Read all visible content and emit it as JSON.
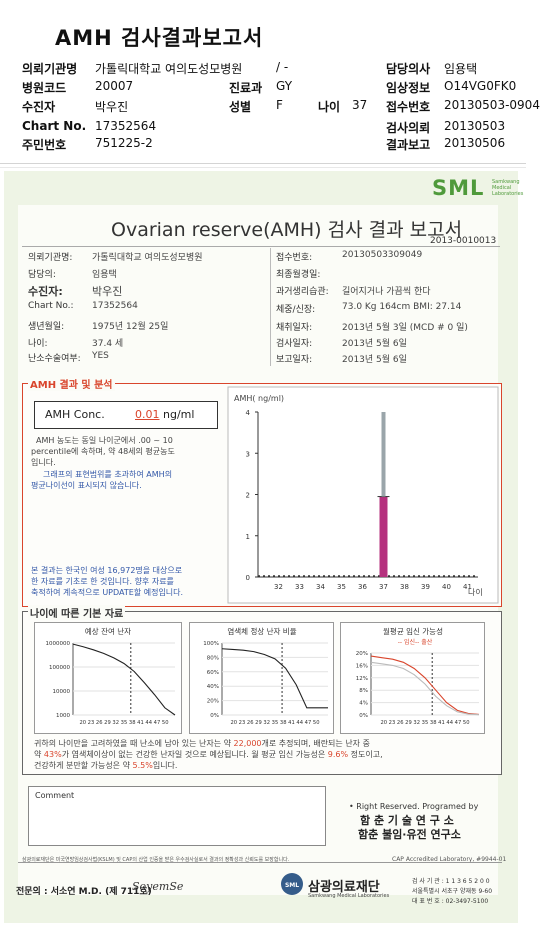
{
  "header": {
    "title": "AMH 검사결과보고서",
    "rows": [
      {
        "l1": "의뢰기관명",
        "v1": "가톨릭대학교 여의도성모병원",
        "l2": "",
        "v2": "/ -",
        "l3": "담당의사",
        "v3": "임용택"
      },
      {
        "l1": "병원코드",
        "v1": "20007",
        "l2": "진료과",
        "v2": "GY",
        "l3": "임상정보",
        "v3": "O14VG0FK0"
      },
      {
        "l1": "수진자",
        "v1": "박우진",
        "l2": "성별",
        "v2": "F",
        "l3": "접수번호",
        "v3": "20130503-0904"
      },
      {
        "l1": "Chart No.",
        "v1": "17352564",
        "l2": "",
        "v2": "",
        "l3": "검사의뢰",
        "v3": "20130503"
      },
      {
        "l1": "주민번호",
        "v1": "751225-2",
        "l2": "",
        "v2": "",
        "l3": "결과보고",
        "v3": "20130506"
      }
    ],
    "age_label": "나이",
    "age_value": "37"
  },
  "report": {
    "logo": "SML",
    "logo_sub": "Samkwang Medical Laboratories",
    "title": "Ovarian reserve(AMH) 검사 결과 보고서",
    "number": "2013-0010013",
    "left_fields": [
      {
        "label": "의뢰기관명:",
        "value": "가톨릭대학교 여의도성모병원"
      },
      {
        "label": "담당의:",
        "value": "임용택"
      },
      {
        "label": "수진자:",
        "value": "박우진"
      },
      {
        "label": "Chart No.:",
        "value": "17352564"
      },
      {
        "label": "생년월일:",
        "value": "1975년 12월 25일"
      },
      {
        "label": "나이:",
        "value": "37.4 세"
      },
      {
        "label": "난소수술여부:",
        "value": "YES"
      }
    ],
    "right_fields": [
      {
        "label": "접수번호:",
        "value": "20130503309049"
      },
      {
        "label": "최종월경일:",
        "value": ""
      },
      {
        "label": "과거생리습관:",
        "value": "길어지거나 가끔씩 한다"
      },
      {
        "label": "체중/신장:",
        "value": "73.0 Kg   164cm   BMI: 27.14"
      },
      {
        "label": "채취일자:",
        "value": "2013년 5월 3일    (MCD # 0 일)"
      },
      {
        "label": "검사일자:",
        "value": "2013년 5월 6일"
      },
      {
        "label": "보고일자:",
        "value": "2013년 5월 6일"
      }
    ]
  },
  "amh_section": {
    "heading": "AMH 결과 및 분석",
    "conc_label": "AMH Conc.",
    "conc_value": "0.01",
    "conc_unit": "ng/ml",
    "desc1": "AMH 농도는 동일 나이군에서  .00 ~  10",
    "desc2": "percentile에 속하며,  약   48세의 평균농도",
    "desc3": "입니다.",
    "desc4": "그래프의 표현범위를 초과하여 AMH의",
    "desc5": "평균나이선이 표시되지 않습니다.",
    "note1": "본 결과는 한국인 여성 16,972명을 대상으로",
    "note2": "한 자료를 기초로 한 것입니다. 향후 자료를",
    "note3": "축적하여 계속적으로 UPDATE할 예정입니다."
  },
  "chart_data": [
    {
      "type": "bar",
      "title": "",
      "ylabel": "AMH( ng/ml)",
      "xlabel": "나이",
      "categories": [
        "32",
        "33",
        "34",
        "35",
        "36",
        "37",
        "38",
        "39",
        "40",
        "41"
      ],
      "ylim": [
        0,
        4
      ],
      "yticks": [
        "0",
        "1",
        "2",
        "3",
        "4"
      ],
      "series": [
        {
          "values": [
            0,
            0,
            0,
            0,
            0,
            1.95,
            0,
            0,
            0,
            0
          ],
          "color": "#b5317e"
        },
        {
          "values": [
            0,
            0,
            0,
            0,
            0,
            4.0,
            0,
            0,
            0,
            0
          ],
          "color": "#9aa5aa"
        }
      ],
      "grid": false
    },
    {
      "type": "line",
      "title": "예상 잔여 난자",
      "yticks": [
        "1000000",
        "100000",
        "10000",
        "1000"
      ],
      "xticks": "20 23 26 29 32 35 38 41 44 47 50",
      "x": [
        20,
        23,
        26,
        29,
        32,
        35,
        38,
        41,
        44,
        47,
        50
      ],
      "y": [
        900000,
        700000,
        520000,
        370000,
        240000,
        140000,
        65000,
        22000,
        7000,
        2000,
        800
      ]
    },
    {
      "type": "line",
      "title": "염색체 정상 난자 비율",
      "yticks": [
        "100%",
        "80%",
        "60%",
        "40%",
        "20%",
        "0%"
      ],
      "xticks": "20 23 26 29 32 35 38 41 44 47 50",
      "x": [
        20,
        23,
        26,
        29,
        32,
        35,
        38,
        41,
        44,
        47,
        50
      ],
      "y": [
        92,
        91,
        90,
        88,
        84,
        78,
        65,
        42,
        10,
        10,
        10
      ]
    },
    {
      "type": "line",
      "title": "월평균 임신 가능성",
      "legend": "-- 임신-- 출산",
      "yticks": [
        "20%",
        "16%",
        "12%",
        "8%",
        "4%",
        "0%"
      ],
      "xticks": "20 23 26 29 32 35 38 41 44 47 50",
      "x": [
        20,
        23,
        26,
        29,
        32,
        35,
        38,
        41,
        44,
        47,
        50
      ],
      "series": [
        {
          "values": [
            19,
            18.5,
            18,
            17,
            15,
            12,
            8,
            4,
            1.5,
            0.5,
            0.2
          ]
        },
        {
          "values": [
            17,
            16.5,
            16,
            15,
            13,
            10,
            6,
            3,
            1,
            0.3,
            0.1
          ]
        }
      ]
    }
  ],
  "age_section": {
    "heading": "나이에 따른 기본 자료",
    "summary1_a": "귀하의 나이만을 고려하였을 때 난소에 남아 있는 난자는 약",
    "summary1_b": "22,000",
    "summary1_c": "개로 추정되며, 배란되는 난자 중",
    "summary2_a": "약",
    "summary2_b": "43%",
    "summary2_c": "가 염색체이상이 없는 건강한 난자일 것으로 예상됩니다. 월 평균 임신 가능성은",
    "summary2_d": "9.6%",
    "summary2_e": "정도이고,",
    "summary3_a": "건강하게 분만할 가능성은 약",
    "summary3_b": "5.5%",
    "summary3_c": "입니다."
  },
  "comment": {
    "label": "Comment",
    "rights": "• Right Reserved. Programed by",
    "org1": "함 춘 기 술 연 구 소",
    "org2": "함춘 불임·유전 연구소"
  },
  "footer": {
    "accreditation": "삼광의료재단은 미국연방임상검사법(KSLM) 및 CAP의 산업 인증을 받은 우수검사실로서 결과의 정확성과 신뢰도를 보장합니다.",
    "cap": "CAP  Accredited  Laboratory,  #9944-01",
    "doctor": "전문의 : 서소연 M.D. (제 711호)",
    "signature": "SoyemSe",
    "foundation": "삼광의료재단",
    "foundation_sub": "Samkwang Medical Laboratories",
    "contact1": "검 사 기 관 : 1 1 3 6 5 2 0 0",
    "contact2": "서울특별시 서초구 양재동 9-60",
    "contact3": "대 표 번 호 : 02-3497-5100"
  }
}
